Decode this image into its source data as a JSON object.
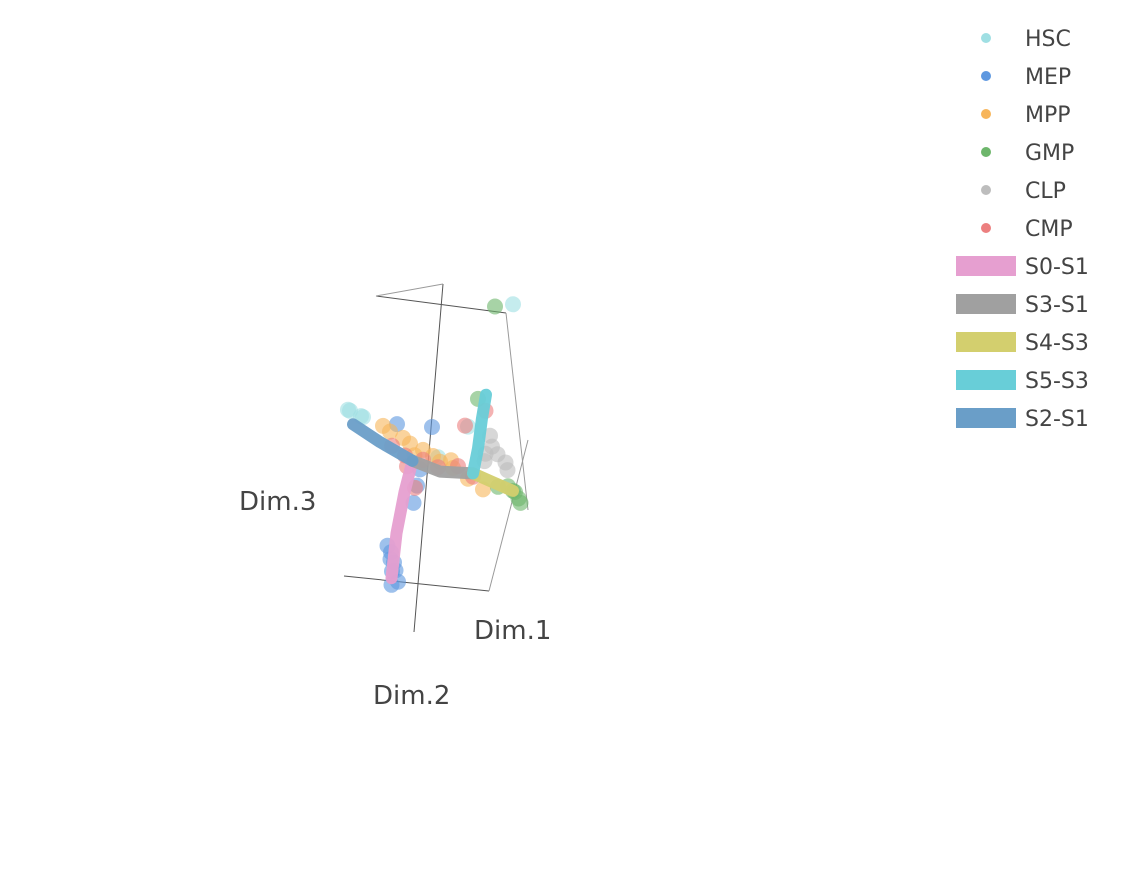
{
  "chart_data": {
    "type": "scatter",
    "projection": "3d",
    "axes": {
      "x_title": "Dim.1",
      "y_title": "Dim.2",
      "z_title": "Dim.3"
    },
    "grid": false,
    "legend": {
      "position": "top-right"
    },
    "groups": [
      {
        "name": "HSC",
        "color": "#9fdfe3",
        "points": [
          [
            -3.2,
            0,
            0.5
          ],
          [
            -3.0,
            0.1,
            0.5
          ],
          [
            -2.8,
            -0.1,
            0.4
          ],
          [
            -2.6,
            0,
            0.4
          ],
          [
            2.2,
            -1.0,
            4.9
          ],
          [
            1.0,
            -0.5,
            0.9
          ],
          [
            0.4,
            0,
            -0.2
          ]
        ]
      },
      {
        "name": "MEP",
        "color": "#5e98e0",
        "points": [
          [
            -1.0,
            0.2,
            0.5
          ],
          [
            -0.2,
            0.1,
            -0.7
          ],
          [
            -0.2,
            0.2,
            -1.2
          ],
          [
            -0.7,
            -0.1,
            -1.8
          ],
          [
            -0.9,
            0.6,
            -3.2
          ],
          [
            -1.0,
            0.4,
            -3.4
          ],
          [
            -1.0,
            0.3,
            -3.7
          ],
          [
            -0.9,
            0.5,
            -3.6
          ],
          [
            -1.2,
            0.2,
            -4.0
          ],
          [
            -1.2,
            0,
            -4.3
          ],
          [
            -1.1,
            0.3,
            -4.4
          ],
          [
            -0.7,
            0.5,
            -3.9
          ],
          [
            0.4,
            0.2,
            0.7
          ]
        ]
      },
      {
        "name": "MPP",
        "color": "#f7b55a",
        "points": [
          [
            -1.8,
            0,
            0.3
          ],
          [
            -1.4,
            0.1,
            0.2
          ],
          [
            -1.0,
            0,
            0.1
          ],
          [
            -0.6,
            0.1,
            0
          ],
          [
            -0.2,
            0,
            -0.1
          ],
          [
            0.2,
            0,
            -0.2
          ],
          [
            0.6,
            0.1,
            -0.3
          ],
          [
            1.0,
            0,
            -0.4
          ],
          [
            1.6,
            0,
            -0.6
          ],
          [
            2.2,
            0,
            -0.8
          ],
          [
            -0.3,
            0.2,
            -0.3
          ],
          [
            0.8,
            -0.1,
            -0.2
          ]
        ]
      },
      {
        "name": "GMP",
        "color": "#6db66b",
        "points": [
          [
            1.6,
            -0.9,
            4.7
          ],
          [
            2.0,
            0,
            1.9
          ],
          [
            3.2,
            0,
            -0.5
          ],
          [
            3.4,
            0,
            -0.6
          ],
          [
            3.6,
            0.1,
            -0.6
          ],
          [
            3.5,
            -0.1,
            -0.8
          ],
          [
            3.7,
            0,
            -0.9
          ],
          [
            2.8,
            0,
            -0.6
          ]
        ]
      },
      {
        "name": "CLP",
        "color": "#bdbdbd",
        "points": [
          [
            2.6,
            0.1,
            0.9
          ],
          [
            2.9,
            0.1,
            0.4
          ],
          [
            3.1,
            0,
            0.2
          ],
          [
            2.3,
            0,
            0.3
          ],
          [
            3.3,
            0.1,
            0
          ],
          [
            2.5,
            0.2,
            0.1
          ],
          [
            2.8,
            0.2,
            0.6
          ]
        ]
      },
      {
        "name": "CMP",
        "color": "#ec7f7f",
        "points": [
          [
            -1.2,
            0.2,
            -0.2
          ],
          [
            -0.8,
            0.1,
            -0.4
          ],
          [
            -0.2,
            0,
            -0.4
          ],
          [
            0.4,
            0,
            -0.5
          ],
          [
            1.2,
            0,
            -0.3
          ],
          [
            1.8,
            0,
            -0.5
          ],
          [
            -0.4,
            0.1,
            -1.3
          ],
          [
            2.3,
            0,
            1.6
          ],
          [
            1.6,
            0.1,
            1.0
          ],
          [
            -0.6,
            0.2,
            -0.7
          ]
        ]
      }
    ],
    "curves": [
      {
        "name": "S0-S1",
        "color": "#e69fd0",
        "points": [
          [
            -1.1,
            0.3,
            -4.2
          ],
          [
            -0.9,
            0.3,
            -2.8
          ],
          [
            -0.7,
            0.2,
            -1.5
          ],
          [
            -0.5,
            0.1,
            -0.5
          ]
        ]
      },
      {
        "name": "S3-S1",
        "color": "#a0a0a0",
        "points": [
          [
            -0.5,
            0.1,
            -0.5
          ],
          [
            0.6,
            0.1,
            -0.6
          ],
          [
            1.8,
            0,
            -0.4
          ]
        ]
      },
      {
        "name": "S4-S3",
        "color": "#d3cf6e",
        "points": [
          [
            1.8,
            0,
            -0.4
          ],
          [
            2.6,
            0,
            -0.5
          ],
          [
            3.4,
            0,
            -0.6
          ]
        ]
      },
      {
        "name": "S5-S3",
        "color": "#68ced8",
        "points": [
          [
            1.8,
            0,
            -0.4
          ],
          [
            2.0,
            0,
            0.4
          ],
          [
            1.8,
            -0.3,
            1.3
          ],
          [
            1.6,
            -0.6,
            2.0
          ]
        ]
      },
      {
        "name": "S2-S1",
        "color": "#6a9ec8",
        "points": [
          [
            -0.5,
            0.1,
            -0.5
          ],
          [
            -1.8,
            0.1,
            -0.2
          ],
          [
            -3.0,
            0,
            0.1
          ]
        ]
      }
    ]
  }
}
